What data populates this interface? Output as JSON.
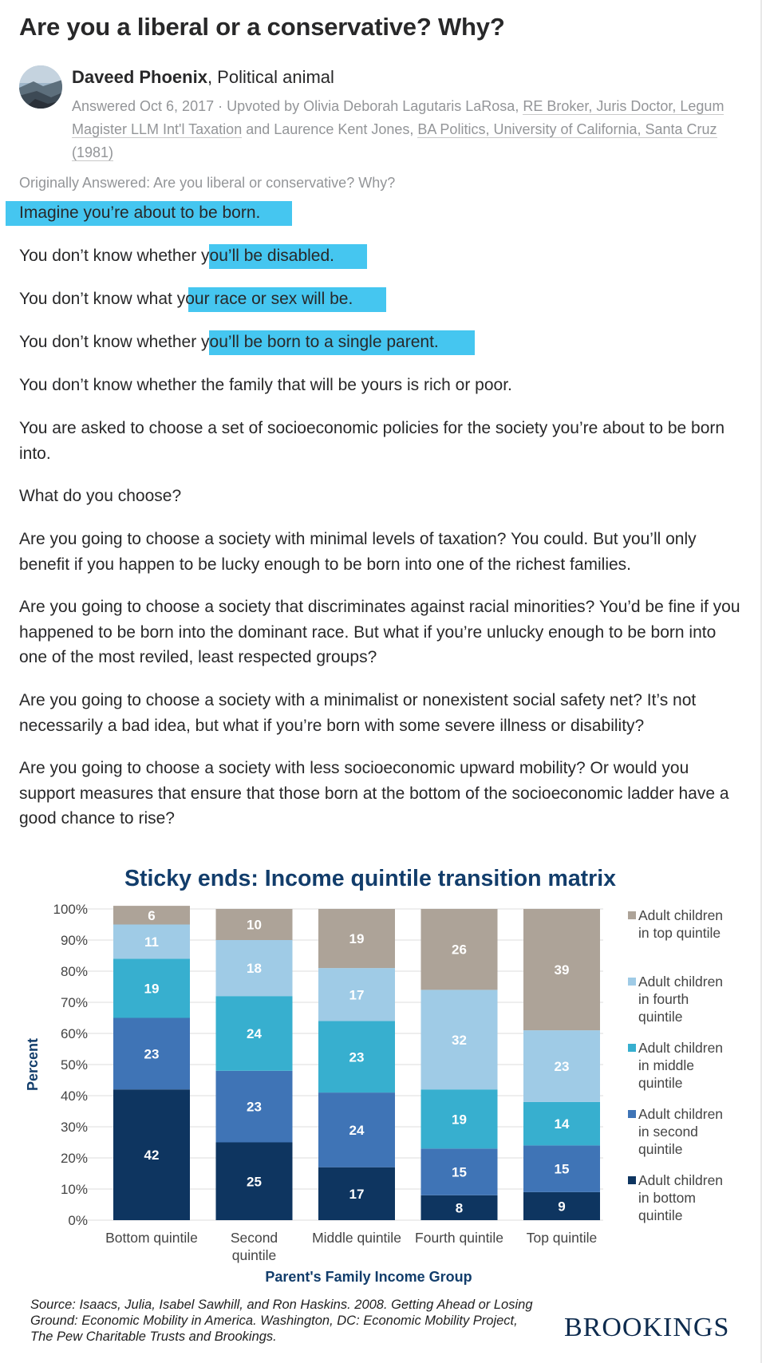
{
  "question": {
    "title": "Are you a liberal or a conservative? Why?"
  },
  "answer": {
    "author_name": "Daveed Phoenix",
    "author_credential": ", Political animal",
    "answered_date": "Answered Oct 6, 2017",
    "upvote_prefix": " · Upvoted by ",
    "upvoter_1_name": "Olivia Deborah Lagutaris LaRosa",
    "upvoter_1_credential": "RE Broker, Juris Doctor, Legum Magister LLM Int'l Taxation",
    "upvote_and": " and ",
    "upvoter_2_name": "Laurence Kent Jones",
    "upvoter_2_credential": "BA Politics, University of California, Santa Cruz (1981)",
    "originally_answered": "Originally Answered: Are you liberal or conservative? Why?"
  },
  "body": {
    "p1": "Imagine you’re about to be born.",
    "p2a": "You don’t know whether",
    "p2b": " you’ll be disabled.",
    "p3a": "You don’t know what",
    "p3b": " your race or sex will be.",
    "p4a": "You don’t know whether",
    "p4b": " you’ll be born to a single parent.",
    "p5": "You don’t know whether the family that will be yours is rich or poor.",
    "p6": "You are asked to choose a set of socioeconomic policies for the society you’re about to be born into.",
    "p7": "What do you choose?",
    "p8": "Are you going to choose a society with minimal levels of taxation? You could. But you’ll only benefit if you happen to be lucky enough to be born into one of the richest families.",
    "p9": "Are you going to choose a society that discriminates against racial minorities? You’d be fine if you happened to be born into the dominant race. But what if you’re unlucky enough to be born into one of the most reviled, least respected groups?",
    "p10": "Are you going to choose a society with a minimalist or nonexistent social safety net? It’s not necessarily a bad idea, but what if you’re born with some severe illness or disability?",
    "p11": "Are you going to choose a society with less socioeconomic upward mobility? Or would you support measures that ensure that those born at the bottom of the socioeconomic ladder have a good chance to rise?"
  },
  "colors": {
    "highlight": "#45c6f0",
    "bottom": "#0e3560",
    "second": "#3f74b6",
    "middle": "#37afcf",
    "fourth": "#9fcbe6",
    "top": "#ada398",
    "title": "#123d6b"
  },
  "chart_data": {
    "type": "bar",
    "stacked": true,
    "title": "Sticky ends: Income quintile transition matrix",
    "xlabel": "Parent's Family Income Group",
    "ylabel": "Percent",
    "ylim": [
      0,
      100
    ],
    "yticks": [
      "0%",
      "10%",
      "20%",
      "30%",
      "40%",
      "50%",
      "60%",
      "70%",
      "80%",
      "90%",
      "100%"
    ],
    "categories": [
      [
        "Bottom quintile"
      ],
      [
        "Second",
        "quintile"
      ],
      [
        "Middle quintile"
      ],
      [
        "Fourth quintile"
      ],
      [
        "Top quintile"
      ]
    ],
    "series": [
      {
        "key": "bottom",
        "name": [
          "Adult children",
          "in bottom",
          "quintile"
        ],
        "values": [
          42,
          25,
          17,
          8,
          9
        ]
      },
      {
        "key": "second",
        "name": [
          "Adult children",
          "in second",
          "quintile"
        ],
        "values": [
          23,
          23,
          24,
          15,
          15
        ]
      },
      {
        "key": "middle",
        "name": [
          "Adult children",
          "in middle",
          "quintile"
        ],
        "values": [
          19,
          24,
          23,
          19,
          14
        ]
      },
      {
        "key": "fourth",
        "name": [
          "Adult children",
          "in fourth",
          "quintile"
        ],
        "values": [
          11,
          18,
          17,
          32,
          23
        ]
      },
      {
        "key": "top",
        "name": [
          "Adult children",
          "in top quintile"
        ],
        "values": [
          6,
          10,
          19,
          26,
          39
        ]
      }
    ],
    "source": "Source: Isaacs, Julia, Isabel Sawhill, and Ron Haskins. 2008. Getting Ahead or Losing Ground: Economic Mobility in America. Washington, DC: Economic Mobility Project, The Pew Charitable Trusts and Brookings.",
    "brand": "BROOKINGS"
  }
}
